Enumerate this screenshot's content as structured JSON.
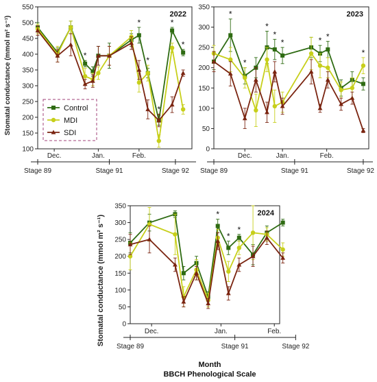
{
  "figure": {
    "ylabel": "Stomatal conductance (mmol m² s⁻¹)",
    "xlabel": "Month",
    "xlabel2": "BBCH Phenological Scale",
    "colors": {
      "Control": "#2e6b12",
      "MDI": "#c7cf1a",
      "SDI": "#7a2410"
    }
  },
  "chart_data": [
    {
      "type": "line",
      "title": "2022",
      "ylim": [
        100,
        550
      ],
      "yticks": [
        100,
        150,
        200,
        250,
        300,
        350,
        400,
        450,
        500,
        550
      ],
      "xlim": [
        0,
        14
      ],
      "months": [
        {
          "label": "Dec.",
          "x": 1.5
        },
        {
          "label": "Jan.",
          "x": 5.5
        },
        {
          "label": "Feb.",
          "x": 9.2
        }
      ],
      "stages": [
        {
          "label": "Stage 89",
          "x": 0
        },
        {
          "label": "Stage 91",
          "x": 6.5
        },
        {
          "label": "Stage 92",
          "x": 12.5
        }
      ],
      "x": [
        0,
        1.8,
        3,
        4.3,
        5,
        5.5,
        6.5,
        8.5,
        9.2,
        10,
        11,
        12.2,
        13.2
      ],
      "asterisks": [
        4.3,
        9.2,
        10,
        11,
        12.2,
        13.2
      ],
      "legend": {
        "show": true,
        "position": "bottom-left"
      },
      "series": [
        {
          "name": "Control",
          "values": [
            485,
            405,
            485,
            370,
            345,
            395,
            395,
            445,
            460,
            340,
            190,
            475,
            405
          ],
          "errors": [
            15,
            15,
            20,
            10,
            15,
            30,
            40,
            20,
            25,
            15,
            15,
            10,
            10
          ]
        },
        {
          "name": "MDI",
          "values": [
            480,
            400,
            485,
            330,
            320,
            340,
            395,
            455,
            310,
            340,
            125,
            420,
            225
          ],
          "errors": [
            15,
            25,
            20,
            25,
            20,
            20,
            30,
            20,
            30,
            25,
            20,
            15,
            15
          ]
        },
        {
          "name": "SDI",
          "values": [
            475,
            395,
            430,
            305,
            315,
            395,
            395,
            435,
            350,
            225,
            190,
            240,
            340
          ],
          "errors": [
            15,
            20,
            35,
            15,
            20,
            30,
            30,
            20,
            30,
            30,
            20,
            25,
            10
          ]
        }
      ]
    },
    {
      "type": "line",
      "title": "2023",
      "ylim": [
        0,
        350
      ],
      "yticks": [
        0,
        50,
        100,
        150,
        200,
        250,
        300,
        350
      ],
      "xlim": [
        0,
        14
      ],
      "months": [
        {
          "label": "Dec.",
          "x": 2.8
        },
        {
          "label": "Jan.",
          "x": 6.2
        },
        {
          "label": "Feb.",
          "x": 10.2
        }
      ],
      "stages": [
        {
          "label": "Stage 89",
          "x": 0
        },
        {
          "label": "Stage 91",
          "x": 7.3
        },
        {
          "label": "Stage 92",
          "x": 13.5
        }
      ],
      "x": [
        0,
        1.5,
        2.8,
        3.8,
        4.8,
        5.5,
        6.2,
        8.8,
        9.6,
        10.3,
        11.5,
        12.5,
        13.5
      ],
      "asterisks": [
        1.5,
        2.8,
        4.8,
        5.5,
        6.2,
        9.6,
        10.3,
        13.5
      ],
      "legend": {
        "show": false
      },
      "series": [
        {
          "name": "Control",
          "values": [
            215,
            280,
            180,
            200,
            250,
            245,
            230,
            250,
            235,
            245,
            150,
            170,
            160
          ],
          "errors": [
            20,
            40,
            20,
            25,
            40,
            25,
            20,
            25,
            20,
            20,
            20,
            20,
            15
          ]
        },
        {
          "name": "MDI",
          "values": [
            235,
            220,
            175,
            95,
            220,
            105,
            115,
            235,
            205,
            200,
            145,
            150,
            205
          ],
          "errors": [
            20,
            30,
            25,
            40,
            30,
            40,
            25,
            40,
            30,
            25,
            20,
            25,
            20
          ]
        },
        {
          "name": "SDI",
          "values": [
            215,
            185,
            75,
            170,
            90,
            190,
            105,
            190,
            100,
            170,
            110,
            125,
            45
          ],
          "errors": [
            25,
            30,
            25,
            30,
            25,
            25,
            20,
            30,
            10,
            20,
            15,
            15,
            5
          ]
        }
      ]
    },
    {
      "type": "line",
      "title": "2024",
      "ylim": [
        0,
        350
      ],
      "yticks": [
        0,
        50,
        100,
        150,
        200,
        250,
        300,
        350
      ],
      "xlim": [
        0,
        14
      ],
      "months": [
        {
          "label": "Dec.",
          "x": 2
        },
        {
          "label": "Jan.",
          "x": 8.5
        },
        {
          "label": "Feb.",
          "x": 13.5
        }
      ],
      "stages": [
        {
          "label": "Stage 89",
          "x": 0
        },
        {
          "label": "Stage 91",
          "x": 9.8
        },
        {
          "label": "Stage 92",
          "x": 15.5
        }
      ],
      "x": [
        0,
        1.8,
        4.2,
        5,
        6.2,
        7.3,
        8.2,
        9.2,
        10.2,
        11.5,
        12.8,
        14.3
      ],
      "asterisks": [
        8.2,
        9.2,
        10.2
      ],
      "legend": {
        "show": false
      },
      "series": [
        {
          "name": "Control",
          "values": [
            240,
            300,
            325,
            150,
            180,
            80,
            290,
            225,
            255,
            205,
            270,
            300
          ],
          "errors": [
            30,
            25,
            10,
            20,
            20,
            15,
            20,
            20,
            10,
            30,
            20,
            10
          ]
        },
        {
          "name": "MDI",
          "values": [
            200,
            295,
            265,
            80,
            160,
            70,
            255,
            155,
            225,
            270,
            265,
            220
          ],
          "errors": [
            40,
            50,
            60,
            30,
            30,
            20,
            25,
            30,
            20,
            80,
            20,
            20
          ]
        },
        {
          "name": "SDI",
          "values": [
            235,
            250,
            175,
            65,
            150,
            60,
            245,
            90,
            175,
            200,
            255,
            195
          ],
          "errors": [
            30,
            40,
            20,
            15,
            20,
            15,
            25,
            20,
            20,
            30,
            20,
            15
          ]
        }
      ]
    }
  ]
}
